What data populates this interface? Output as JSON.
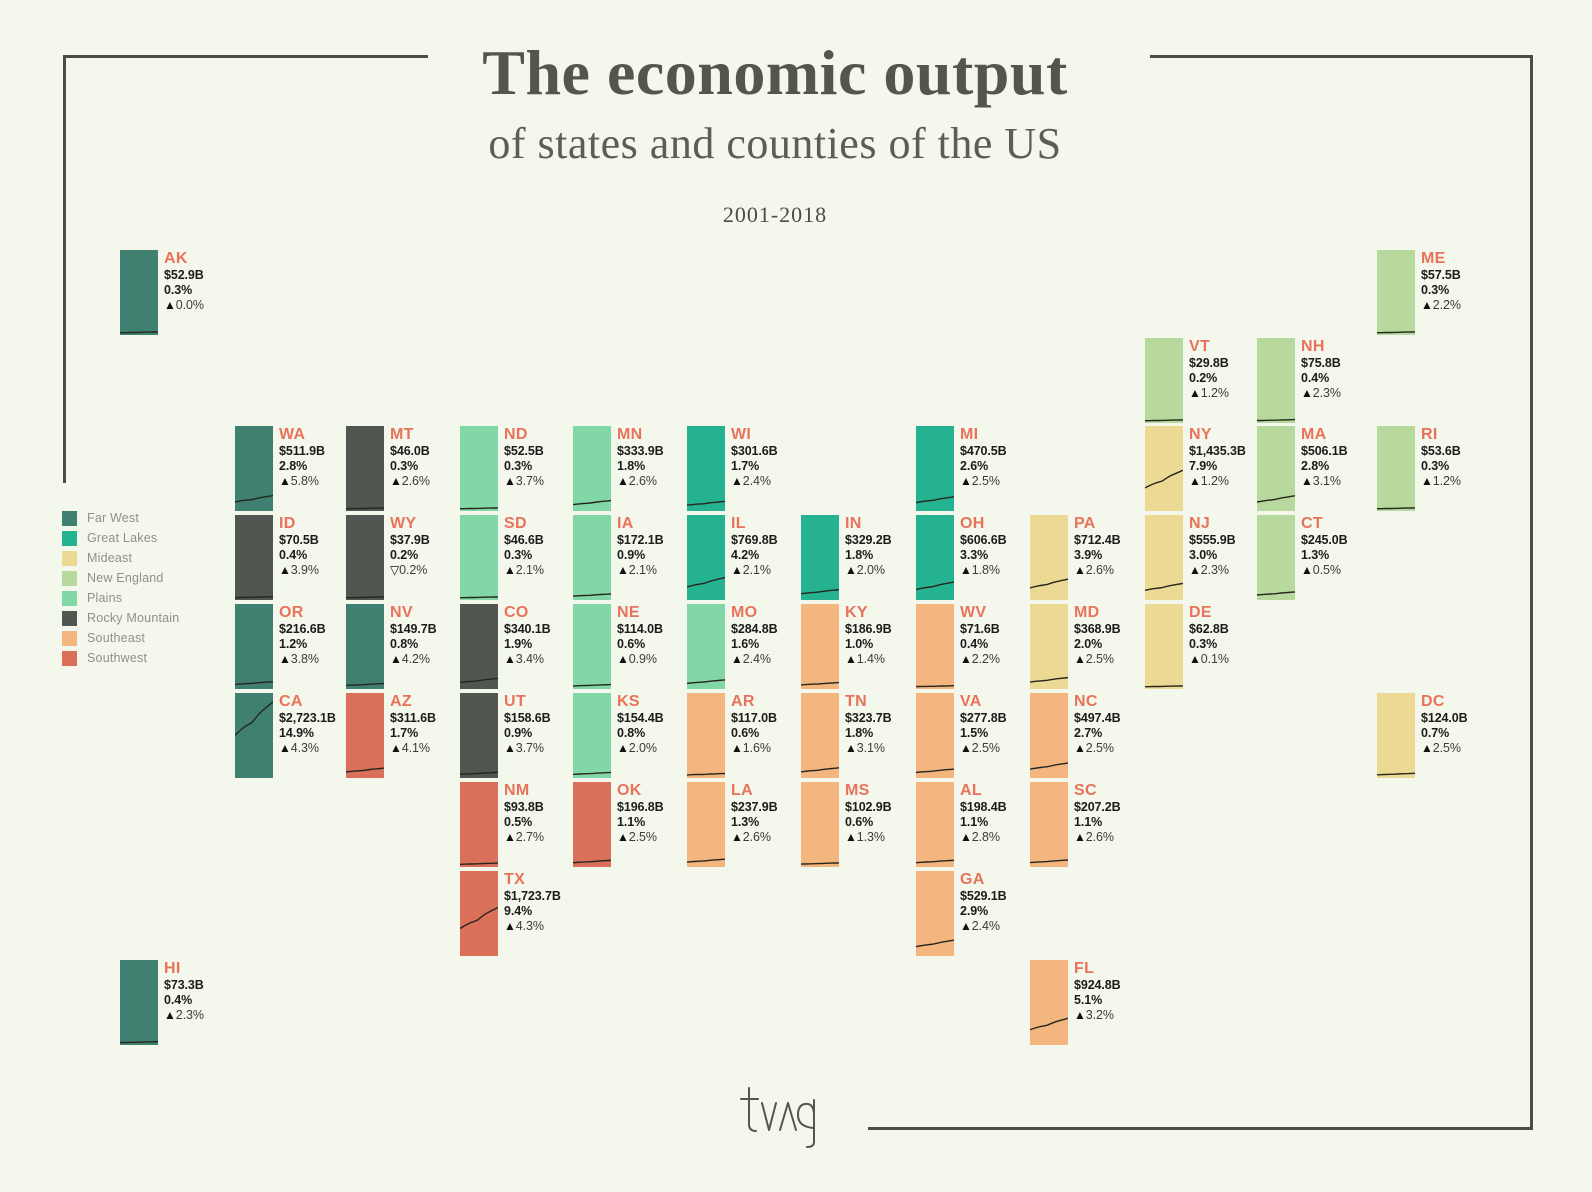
{
  "header": {
    "title": "The economic output",
    "subtitle": "of states and counties of the US",
    "period": "2001-2018"
  },
  "icons": {
    "up": "▲",
    "down": "▽"
  },
  "legend": {
    "items": [
      {
        "key": "farwest",
        "label": "Far West",
        "color": "#3f8070"
      },
      {
        "key": "greatlakes",
        "label": "Great Lakes",
        "color": "#25b291"
      },
      {
        "key": "mideast",
        "label": "Mideast",
        "color": "#ecd994"
      },
      {
        "key": "newengland",
        "label": "New England",
        "color": "#b7d99e"
      },
      {
        "key": "plains",
        "label": "Plains",
        "color": "#82d7a7"
      },
      {
        "key": "rocky",
        "label": "Rocky Mountain",
        "color": "#505650"
      },
      {
        "key": "southeast",
        "label": "Southeast",
        "color": "#f2b67e"
      },
      {
        "key": "southwest",
        "label": "Southwest",
        "color": "#da7059"
      }
    ]
  },
  "chart_data": {
    "type": "table",
    "layout": "us-tile-grid-cartogram",
    "title": "The economic output",
    "subtitle": "of states and counties of the US",
    "period": "2001-2018",
    "columns": [
      "state",
      "output",
      "share_of_us",
      "growth",
      "region"
    ],
    "sparkline_note": "each tile contains a 2001-2018 output trend line drawn on a shared value scale (max ~ $2,900B)",
    "states": [
      {
        "code": "AK",
        "region": "farwest",
        "value": "$52.9B",
        "value_b": 52.9,
        "share": "0.3%",
        "growth": "0.0%",
        "dir": "up",
        "col": 0,
        "row": 0
      },
      {
        "code": "ME",
        "region": "newengland",
        "value": "$57.5B",
        "value_b": 57.5,
        "share": "0.3%",
        "growth": "2.2%",
        "dir": "up",
        "col": 11,
        "row": 0
      },
      {
        "code": "VT",
        "region": "newengland",
        "value": "$29.8B",
        "value_b": 29.8,
        "share": "0.2%",
        "growth": "1.2%",
        "dir": "up",
        "col": 9,
        "row": 1
      },
      {
        "code": "NH",
        "region": "newengland",
        "value": "$75.8B",
        "value_b": 75.8,
        "share": "0.4%",
        "growth": "2.3%",
        "dir": "up",
        "col": 10,
        "row": 1
      },
      {
        "code": "WA",
        "region": "farwest",
        "value": "$511.9B",
        "value_b": 511.9,
        "share": "2.8%",
        "growth": "5.8%",
        "dir": "up",
        "col": 1,
        "row": 2
      },
      {
        "code": "MT",
        "region": "rocky",
        "value": "$46.0B",
        "value_b": 46.0,
        "share": "0.3%",
        "growth": "2.6%",
        "dir": "up",
        "col": 2,
        "row": 2
      },
      {
        "code": "ND",
        "region": "plains",
        "value": "$52.5B",
        "value_b": 52.5,
        "share": "0.3%",
        "growth": "3.7%",
        "dir": "up",
        "col": 3,
        "row": 2
      },
      {
        "code": "MN",
        "region": "plains",
        "value": "$333.9B",
        "value_b": 333.9,
        "share": "1.8%",
        "growth": "2.6%",
        "dir": "up",
        "col": 4,
        "row": 2
      },
      {
        "code": "WI",
        "region": "greatlakes",
        "value": "$301.6B",
        "value_b": 301.6,
        "share": "1.7%",
        "growth": "2.4%",
        "dir": "up",
        "col": 5,
        "row": 2
      },
      {
        "code": "MI",
        "region": "greatlakes",
        "value": "$470.5B",
        "value_b": 470.5,
        "share": "2.6%",
        "growth": "2.5%",
        "dir": "up",
        "col": 7,
        "row": 2
      },
      {
        "code": "NY",
        "region": "mideast",
        "value": "$1,435.3B",
        "value_b": 1435.3,
        "share": "7.9%",
        "growth": "1.2%",
        "dir": "up",
        "col": 9,
        "row": 2
      },
      {
        "code": "MA",
        "region": "newengland",
        "value": "$506.1B",
        "value_b": 506.1,
        "share": "2.8%",
        "growth": "3.1%",
        "dir": "up",
        "col": 10,
        "row": 2
      },
      {
        "code": "RI",
        "region": "newengland",
        "value": "$53.6B",
        "value_b": 53.6,
        "share": "0.3%",
        "growth": "1.2%",
        "dir": "up",
        "col": 11,
        "row": 2
      },
      {
        "code": "ID",
        "region": "rocky",
        "value": "$70.5B",
        "value_b": 70.5,
        "share": "0.4%",
        "growth": "3.9%",
        "dir": "up",
        "col": 1,
        "row": 3
      },
      {
        "code": "WY",
        "region": "rocky",
        "value": "$37.9B",
        "value_b": 37.9,
        "share": "0.2%",
        "growth": "0.2%",
        "dir": "down",
        "col": 2,
        "row": 3
      },
      {
        "code": "SD",
        "region": "plains",
        "value": "$46.6B",
        "value_b": 46.6,
        "share": "0.3%",
        "growth": "2.1%",
        "dir": "up",
        "col": 3,
        "row": 3
      },
      {
        "code": "IA",
        "region": "plains",
        "value": "$172.1B",
        "value_b": 172.1,
        "share": "0.9%",
        "growth": "2.1%",
        "dir": "up",
        "col": 4,
        "row": 3
      },
      {
        "code": "IL",
        "region": "greatlakes",
        "value": "$769.8B",
        "value_b": 769.8,
        "share": "4.2%",
        "growth": "2.1%",
        "dir": "up",
        "col": 5,
        "row": 3
      },
      {
        "code": "IN",
        "region": "greatlakes",
        "value": "$329.2B",
        "value_b": 329.2,
        "share": "1.8%",
        "growth": "2.0%",
        "dir": "up",
        "col": 6,
        "row": 3
      },
      {
        "code": "OH",
        "region": "greatlakes",
        "value": "$606.6B",
        "value_b": 606.6,
        "share": "3.3%",
        "growth": "1.8%",
        "dir": "up",
        "col": 7,
        "row": 3
      },
      {
        "code": "PA",
        "region": "mideast",
        "value": "$712.4B",
        "value_b": 712.4,
        "share": "3.9%",
        "growth": "2.6%",
        "dir": "up",
        "col": 8,
        "row": 3
      },
      {
        "code": "NJ",
        "region": "mideast",
        "value": "$555.9B",
        "value_b": 555.9,
        "share": "3.0%",
        "growth": "2.3%",
        "dir": "up",
        "col": 9,
        "row": 3
      },
      {
        "code": "CT",
        "region": "newengland",
        "value": "$245.0B",
        "value_b": 245.0,
        "share": "1.3%",
        "growth": "0.5%",
        "dir": "up",
        "col": 10,
        "row": 3
      },
      {
        "code": "OR",
        "region": "farwest",
        "value": "$216.6B",
        "value_b": 216.6,
        "share": "1.2%",
        "growth": "3.8%",
        "dir": "up",
        "col": 1,
        "row": 4
      },
      {
        "code": "NV",
        "region": "farwest",
        "value": "$149.7B",
        "value_b": 149.7,
        "share": "0.8%",
        "growth": "4.2%",
        "dir": "up",
        "col": 2,
        "row": 4
      },
      {
        "code": "CO",
        "region": "rocky",
        "value": "$340.1B",
        "value_b": 340.1,
        "share": "1.9%",
        "growth": "3.4%",
        "dir": "up",
        "col": 3,
        "row": 4
      },
      {
        "code": "NE",
        "region": "plains",
        "value": "$114.0B",
        "value_b": 114.0,
        "share": "0.6%",
        "growth": "0.9%",
        "dir": "up",
        "col": 4,
        "row": 4
      },
      {
        "code": "MO",
        "region": "plains",
        "value": "$284.8B",
        "value_b": 284.8,
        "share": "1.6%",
        "growth": "2.4%",
        "dir": "up",
        "col": 5,
        "row": 4
      },
      {
        "code": "KY",
        "region": "southeast",
        "value": "$186.9B",
        "value_b": 186.9,
        "share": "1.0%",
        "growth": "1.4%",
        "dir": "up",
        "col": 6,
        "row": 4
      },
      {
        "code": "WV",
        "region": "southeast",
        "value": "$71.6B",
        "value_b": 71.6,
        "share": "0.4%",
        "growth": "2.2%",
        "dir": "up",
        "col": 7,
        "row": 4
      },
      {
        "code": "MD",
        "region": "mideast",
        "value": "$368.9B",
        "value_b": 368.9,
        "share": "2.0%",
        "growth": "2.5%",
        "dir": "up",
        "col": 8,
        "row": 4
      },
      {
        "code": "DE",
        "region": "mideast",
        "value": "$62.8B",
        "value_b": 62.8,
        "share": "0.3%",
        "growth": "0.1%",
        "dir": "up",
        "col": 9,
        "row": 4
      },
      {
        "code": "CA",
        "region": "farwest",
        "value": "$2,723.1B",
        "value_b": 2723.1,
        "share": "14.9%",
        "growth": "4.3%",
        "dir": "up",
        "col": 1,
        "row": 5
      },
      {
        "code": "AZ",
        "region": "southwest",
        "value": "$311.6B",
        "value_b": 311.6,
        "share": "1.7%",
        "growth": "4.1%",
        "dir": "up",
        "col": 2,
        "row": 5
      },
      {
        "code": "UT",
        "region": "rocky",
        "value": "$158.6B",
        "value_b": 158.6,
        "share": "0.9%",
        "growth": "3.7%",
        "dir": "up",
        "col": 3,
        "row": 5
      },
      {
        "code": "KS",
        "region": "plains",
        "value": "$154.4B",
        "value_b": 154.4,
        "share": "0.8%",
        "growth": "2.0%",
        "dir": "up",
        "col": 4,
        "row": 5
      },
      {
        "code": "AR",
        "region": "southeast",
        "value": "$117.0B",
        "value_b": 117.0,
        "share": "0.6%",
        "growth": "1.6%",
        "dir": "up",
        "col": 5,
        "row": 5
      },
      {
        "code": "TN",
        "region": "southeast",
        "value": "$323.7B",
        "value_b": 323.7,
        "share": "1.8%",
        "growth": "3.1%",
        "dir": "up",
        "col": 6,
        "row": 5
      },
      {
        "code": "VA",
        "region": "southeast",
        "value": "$277.8B",
        "value_b": 277.8,
        "share": "1.5%",
        "growth": "2.5%",
        "dir": "up",
        "col": 7,
        "row": 5
      },
      {
        "code": "NC",
        "region": "southeast",
        "value": "$497.4B",
        "value_b": 497.4,
        "share": "2.7%",
        "growth": "2.5%",
        "dir": "up",
        "col": 8,
        "row": 5
      },
      {
        "code": "DC",
        "region": "mideast",
        "value": "$124.0B",
        "value_b": 124.0,
        "share": "0.7%",
        "growth": "2.5%",
        "dir": "up",
        "col": 11,
        "row": 5
      },
      {
        "code": "NM",
        "region": "southwest",
        "value": "$93.8B",
        "value_b": 93.8,
        "share": "0.5%",
        "growth": "2.7%",
        "dir": "up",
        "col": 3,
        "row": 6
      },
      {
        "code": "OK",
        "region": "southwest",
        "value": "$196.8B",
        "value_b": 196.8,
        "share": "1.1%",
        "growth": "2.5%",
        "dir": "up",
        "col": 4,
        "row": 6
      },
      {
        "code": "LA",
        "region": "southeast",
        "value": "$237.9B",
        "value_b": 237.9,
        "share": "1.3%",
        "growth": "2.6%",
        "dir": "up",
        "col": 5,
        "row": 6
      },
      {
        "code": "MS",
        "region": "southeast",
        "value": "$102.9B",
        "value_b": 102.9,
        "share": "0.6%",
        "growth": "1.3%",
        "dir": "up",
        "col": 6,
        "row": 6
      },
      {
        "code": "AL",
        "region": "southeast",
        "value": "$198.4B",
        "value_b": 198.4,
        "share": "1.1%",
        "growth": "2.8%",
        "dir": "up",
        "col": 7,
        "row": 6
      },
      {
        "code": "SC",
        "region": "southeast",
        "value": "$207.2B",
        "value_b": 207.2,
        "share": "1.1%",
        "growth": "2.6%",
        "dir": "up",
        "col": 8,
        "row": 6
      },
      {
        "code": "TX",
        "region": "southwest",
        "value": "$1,723.7B",
        "value_b": 1723.7,
        "share": "9.4%",
        "growth": "4.3%",
        "dir": "up",
        "col": 3,
        "row": 7
      },
      {
        "code": "GA",
        "region": "southeast",
        "value": "$529.1B",
        "value_b": 529.1,
        "share": "2.9%",
        "growth": "2.4%",
        "dir": "up",
        "col": 7,
        "row": 7
      },
      {
        "code": "HI",
        "region": "farwest",
        "value": "$73.3B",
        "value_b": 73.3,
        "share": "0.4%",
        "growth": "2.3%",
        "dir": "up",
        "col": 0,
        "row": 8
      },
      {
        "code": "FL",
        "region": "southeast",
        "value": "$924.8B",
        "value_b": 924.8,
        "share": "5.1%",
        "growth": "3.2%",
        "dir": "up",
        "col": 8,
        "row": 8
      }
    ]
  }
}
